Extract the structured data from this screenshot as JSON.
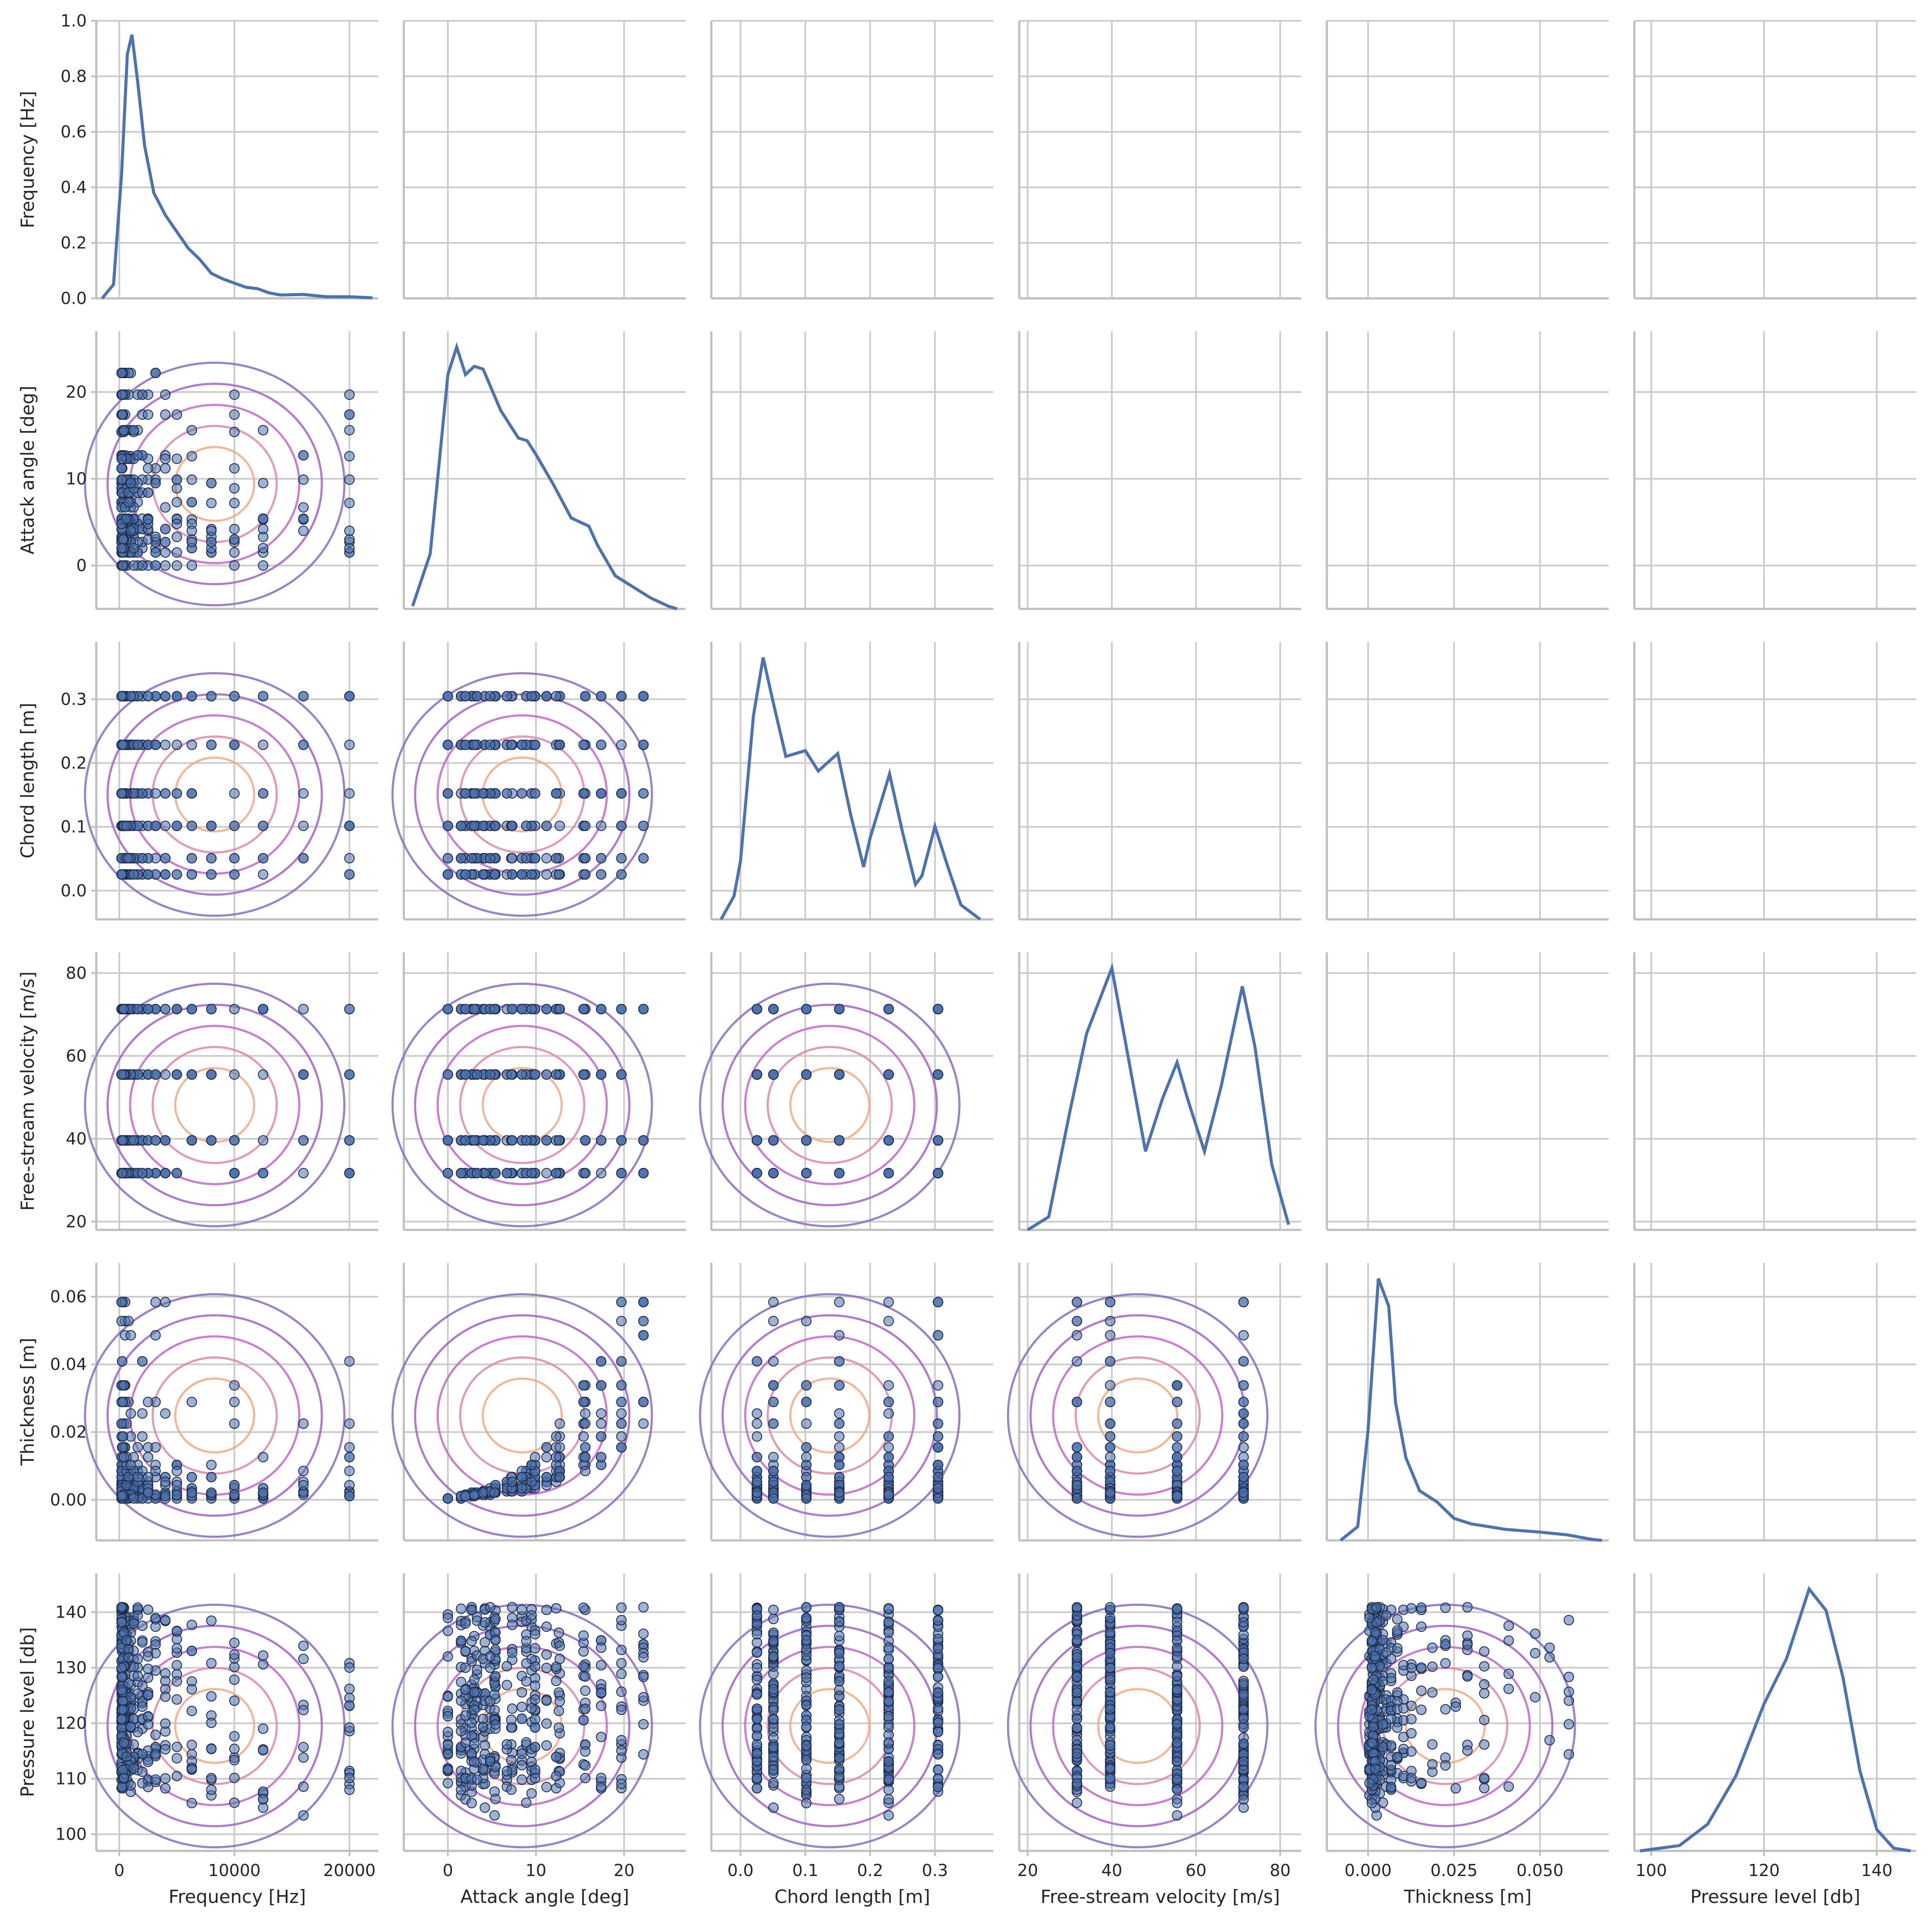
{
  "chart_data": {
    "type": "pairplot",
    "grid": true,
    "colors": {
      "diagonal_line": "#4c72b0",
      "scatter_fill": "#4c72b0",
      "scatter_edge": "#1f2a44",
      "kde_levels": [
        "#8a6cc0",
        "#a064c8",
        "#c06ac8",
        "#d98aac",
        "#eeaa88"
      ],
      "grid": "#cccccc",
      "spine": "#bfbfbf"
    },
    "variables": [
      {
        "key": "freq",
        "label": "Frequency [Hz]",
        "range": [
          -2000,
          22500
        ],
        "ticks": [
          0,
          10000,
          20000
        ],
        "tick_labels": [
          "0",
          "10000",
          "20000"
        ]
      },
      {
        "key": "angle",
        "label": "Attack angle [deg]",
        "range": [
          -5,
          27
        ],
        "ticks": [
          0,
          10,
          20
        ],
        "tick_labels": [
          "0",
          "10",
          "20"
        ]
      },
      {
        "key": "chord",
        "label": "Chord length [m]",
        "range": [
          -0.045,
          0.39
        ],
        "ticks": [
          0.0,
          0.1,
          0.2,
          0.3
        ],
        "tick_labels": [
          "0.0",
          "0.1",
          "0.2",
          "0.3"
        ]
      },
      {
        "key": "vel",
        "label": "Free-stream velocity [m/s]",
        "range": [
          18,
          85
        ],
        "ticks": [
          20,
          40,
          60,
          80
        ],
        "tick_labels": [
          "20",
          "40",
          "60",
          "80"
        ]
      },
      {
        "key": "thick",
        "label": "Thickness [m]",
        "range": [
          -0.012,
          0.07
        ],
        "ticks": [
          0.0,
          0.02,
          0.04,
          0.06
        ],
        "tick_labels": [
          "0.00",
          "0.02",
          "0.04",
          "0.06"
        ],
        "x_ticks": [
          0.0,
          0.025,
          0.05
        ],
        "x_tick_labels": [
          "0.000",
          "0.025",
          "0.050"
        ]
      },
      {
        "key": "press",
        "label": "Pressure level [db]",
        "range": [
          97,
          147
        ],
        "ticks": [
          100,
          110,
          120,
          130,
          140
        ],
        "tick_labels": [
          "100",
          "110",
          "120",
          "130",
          "140"
        ],
        "x_ticks": [
          100,
          120,
          140
        ],
        "x_tick_labels": [
          "100",
          "120",
          "140"
        ]
      }
    ],
    "first_row_ylabel": "Frequency [Hz]",
    "first_row_yrange": [
      0,
      1.0
    ],
    "first_row_yticks": [
      0.0,
      0.2,
      0.4,
      0.6,
      0.8,
      1.0
    ],
    "first_row_ytick_labels": [
      "0.0",
      "0.2",
      "0.4",
      "0.6",
      "0.8",
      "1.0"
    ],
    "levels": {
      "freq": [
        200,
        250,
        315,
        400,
        500,
        630,
        800,
        1000,
        1250,
        1600,
        2000,
        2500,
        3150,
        4000,
        5000,
        6300,
        8000,
        10000,
        12500,
        16000,
        20000
      ],
      "angle": [
        0,
        1.5,
        2,
        2.7,
        3,
        3.3,
        4,
        4.2,
        4.8,
        5.3,
        5.4,
        6.7,
        7.2,
        7.3,
        8.4,
        8.9,
        9.5,
        9.9,
        11.2,
        12.3,
        12.6,
        12.7,
        15.4,
        15.6,
        17.4,
        19.7,
        22.2
      ],
      "chord": [
        0.0254,
        0.0508,
        0.1016,
        0.1524,
        0.2286,
        0.3048
      ],
      "vel": [
        31.7,
        39.6,
        55.5,
        71.3
      ],
      "thick": [
        0.0004,
        0.0011,
        0.0015,
        0.0021,
        0.0025,
        0.0034,
        0.0043,
        0.0053,
        0.0067,
        0.0085,
        0.0103,
        0.0126,
        0.0155,
        0.0187,
        0.0225,
        0.0255,
        0.0289,
        0.0338,
        0.0409,
        0.0486,
        0.0528,
        0.0584
      ],
      "press": {
        "min": 103.4,
        "max": 140.9,
        "mean": 124.8
      }
    },
    "diagonal_kde": {
      "freq": [
        [
          -1500,
          0.0
        ],
        [
          -500,
          0.05
        ],
        [
          200,
          0.45
        ],
        [
          700,
          0.88
        ],
        [
          1100,
          0.95
        ],
        [
          1600,
          0.78
        ],
        [
          2200,
          0.55
        ],
        [
          3000,
          0.38
        ],
        [
          4000,
          0.3
        ],
        [
          5000,
          0.24
        ],
        [
          6000,
          0.18
        ],
        [
          7000,
          0.14
        ],
        [
          8000,
          0.09
        ],
        [
          9000,
          0.07
        ],
        [
          10000,
          0.055
        ],
        [
          11000,
          0.04
        ],
        [
          12000,
          0.035
        ],
        [
          13000,
          0.02
        ],
        [
          14000,
          0.012
        ],
        [
          16000,
          0.014
        ],
        [
          18000,
          0.006
        ],
        [
          20000,
          0.006
        ],
        [
          22000,
          0.002
        ]
      ],
      "angle": [
        [
          -4,
          0.01
        ],
        [
          -2,
          0.2
        ],
        [
          0,
          0.85
        ],
        [
          1,
          0.95
        ],
        [
          2,
          0.85
        ],
        [
          3,
          0.88
        ],
        [
          4,
          0.87
        ],
        [
          6,
          0.72
        ],
        [
          8,
          0.62
        ],
        [
          9,
          0.61
        ],
        [
          10,
          0.56
        ],
        [
          12,
          0.45
        ],
        [
          14,
          0.33
        ],
        [
          16,
          0.3
        ],
        [
          17,
          0.23
        ],
        [
          19,
          0.12
        ],
        [
          21,
          0.08
        ],
        [
          23,
          0.04
        ],
        [
          25,
          0.01
        ],
        [
          26,
          0.0
        ]
      ],
      "chord": [
        [
          -0.03,
          0.0
        ],
        [
          -0.01,
          0.08
        ],
        [
          0.0,
          0.2
        ],
        [
          0.02,
          0.7
        ],
        [
          0.035,
          0.9
        ],
        [
          0.05,
          0.75
        ],
        [
          0.07,
          0.56
        ],
        [
          0.1,
          0.58
        ],
        [
          0.12,
          0.51
        ],
        [
          0.15,
          0.57
        ],
        [
          0.17,
          0.36
        ],
        [
          0.19,
          0.18
        ],
        [
          0.2,
          0.28
        ],
        [
          0.23,
          0.5
        ],
        [
          0.25,
          0.3
        ],
        [
          0.27,
          0.12
        ],
        [
          0.28,
          0.15
        ],
        [
          0.3,
          0.32
        ],
        [
          0.32,
          0.18
        ],
        [
          0.34,
          0.05
        ],
        [
          0.37,
          0.0
        ]
      ],
      "vel": [
        [
          20,
          0.0
        ],
        [
          25,
          0.05
        ],
        [
          30,
          0.45
        ],
        [
          34,
          0.75
        ],
        [
          40,
          1.0
        ],
        [
          44,
          0.65
        ],
        [
          48,
          0.3
        ],
        [
          52,
          0.5
        ],
        [
          55.5,
          0.64
        ],
        [
          58,
          0.5
        ],
        [
          62,
          0.3
        ],
        [
          66,
          0.55
        ],
        [
          71,
          0.93
        ],
        [
          74,
          0.7
        ],
        [
          78,
          0.25
        ],
        [
          82,
          0.02
        ]
      ],
      "thick": [
        [
          -0.008,
          0.0
        ],
        [
          -0.003,
          0.05
        ],
        [
          0.0,
          0.4
        ],
        [
          0.003,
          0.95
        ],
        [
          0.006,
          0.85
        ],
        [
          0.008,
          0.5
        ],
        [
          0.011,
          0.3
        ],
        [
          0.015,
          0.18
        ],
        [
          0.02,
          0.14
        ],
        [
          0.025,
          0.08
        ],
        [
          0.03,
          0.06
        ],
        [
          0.035,
          0.05
        ],
        [
          0.04,
          0.04
        ],
        [
          0.05,
          0.03
        ],
        [
          0.058,
          0.02
        ],
        [
          0.065,
          0.004
        ],
        [
          0.068,
          0.0
        ]
      ],
      "press": [
        [
          98,
          0.0
        ],
        [
          105,
          0.02
        ],
        [
          110,
          0.1
        ],
        [
          115,
          0.28
        ],
        [
          120,
          0.55
        ],
        [
          124,
          0.72
        ],
        [
          128,
          0.98
        ],
        [
          131,
          0.9
        ],
        [
          134,
          0.65
        ],
        [
          137,
          0.3
        ],
        [
          140,
          0.08
        ],
        [
          143,
          0.01
        ],
        [
          146,
          0.0
        ]
      ]
    }
  }
}
